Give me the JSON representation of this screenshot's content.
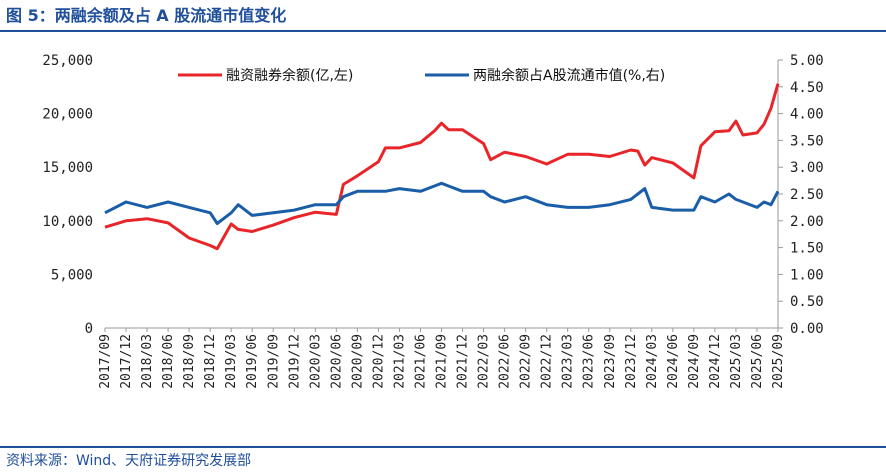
{
  "figure": {
    "title": "图 5：两融余额及占 A 股流通市值变化",
    "source": "资料来源：Wind、天府证券研究发展部"
  },
  "chart_data": {
    "type": "line",
    "x_start": "2017/09",
    "x_end": "2025/09",
    "x_tick_labels": [
      "2017/09",
      "2017/12",
      "2018/03",
      "2018/06",
      "2018/09",
      "2018/12",
      "2019/03",
      "2019/06",
      "2019/09",
      "2019/12",
      "2020/03",
      "2020/06",
      "2020/09",
      "2020/12",
      "2021/03",
      "2021/06",
      "2021/09",
      "2021/12",
      "2022/03",
      "2022/06",
      "2022/09",
      "2022/12",
      "2023/03",
      "2023/06",
      "2023/09",
      "2023/12",
      "2024/03",
      "2024/06",
      "2024/09",
      "2024/12",
      "2025/03",
      "2025/06",
      "2025/09"
    ],
    "left_axis": {
      "ylim": [
        0,
        25000
      ],
      "ticks": [
        "0",
        "5,000",
        "10,000",
        "15,000",
        "20,000",
        "25,000"
      ]
    },
    "right_axis": {
      "ylim": [
        0,
        5
      ],
      "ticks": [
        "0.00",
        "0.50",
        "1.00",
        "1.50",
        "2.00",
        "2.50",
        "3.00",
        "3.50",
        "4.00",
        "4.50",
        "5.00"
      ]
    },
    "grid": false,
    "legend_position": "top",
    "series": [
      {
        "name": "融资融券余额(亿,左)",
        "axis": "left",
        "color": "#e8262a",
        "x": [
          "2017/09",
          "2017/12",
          "2018/03",
          "2018/06",
          "2018/09",
          "2018/12",
          "2019/01",
          "2019/03",
          "2019/04",
          "2019/06",
          "2019/09",
          "2019/12",
          "2020/03",
          "2020/06",
          "2020/07",
          "2020/09",
          "2020/12",
          "2021/01",
          "2021/03",
          "2021/06",
          "2021/08",
          "2021/09",
          "2021/10",
          "2021/12",
          "2022/03",
          "2022/04",
          "2022/06",
          "2022/09",
          "2022/12",
          "2023/03",
          "2023/06",
          "2023/09",
          "2023/12",
          "2024/01",
          "2024/02",
          "2024/03",
          "2024/06",
          "2024/09",
          "2024/10",
          "2024/12",
          "2025/02",
          "2025/03",
          "2025/04",
          "2025/06",
          "2025/07",
          "2025/08",
          "2025/09"
        ],
        "values": [
          9400,
          10000,
          10200,
          9800,
          8400,
          7700,
          7400,
          9700,
          9200,
          9000,
          9600,
          10300,
          10800,
          10600,
          13400,
          14200,
          15500,
          16800,
          16800,
          17300,
          18400,
          19100,
          18500,
          18500,
          17200,
          15700,
          16400,
          16000,
          15300,
          16200,
          16200,
          16000,
          16600,
          16500,
          15200,
          15900,
          15400,
          14000,
          17000,
          18300,
          18400,
          19300,
          18000,
          18200,
          19000,
          20500,
          22800
        ]
      },
      {
        "name": "两融余额占A股流通市值(%,右)",
        "axis": "right",
        "color": "#1a5ea8",
        "x": [
          "2017/09",
          "2017/12",
          "2018/03",
          "2018/06",
          "2018/09",
          "2018/12",
          "2019/01",
          "2019/03",
          "2019/04",
          "2019/06",
          "2019/09",
          "2019/12",
          "2020/03",
          "2020/06",
          "2020/07",
          "2020/09",
          "2020/12",
          "2021/01",
          "2021/03",
          "2021/06",
          "2021/08",
          "2021/09",
          "2021/10",
          "2021/12",
          "2022/03",
          "2022/04",
          "2022/06",
          "2022/09",
          "2022/12",
          "2023/03",
          "2023/06",
          "2023/09",
          "2023/12",
          "2024/01",
          "2024/02",
          "2024/03",
          "2024/06",
          "2024/09",
          "2024/10",
          "2024/12",
          "2025/02",
          "2025/03",
          "2025/04",
          "2025/06",
          "2025/07",
          "2025/08",
          "2025/09"
        ],
        "values": [
          2.15,
          2.35,
          2.25,
          2.35,
          2.25,
          2.15,
          1.95,
          2.15,
          2.3,
          2.1,
          2.15,
          2.2,
          2.3,
          2.3,
          2.45,
          2.55,
          2.55,
          2.55,
          2.6,
          2.55,
          2.65,
          2.7,
          2.65,
          2.55,
          2.55,
          2.45,
          2.35,
          2.45,
          2.3,
          2.25,
          2.25,
          2.3,
          2.4,
          2.5,
          2.6,
          2.25,
          2.2,
          2.2,
          2.45,
          2.35,
          2.5,
          2.4,
          2.35,
          2.25,
          2.35,
          2.3,
          2.55
        ]
      }
    ]
  }
}
